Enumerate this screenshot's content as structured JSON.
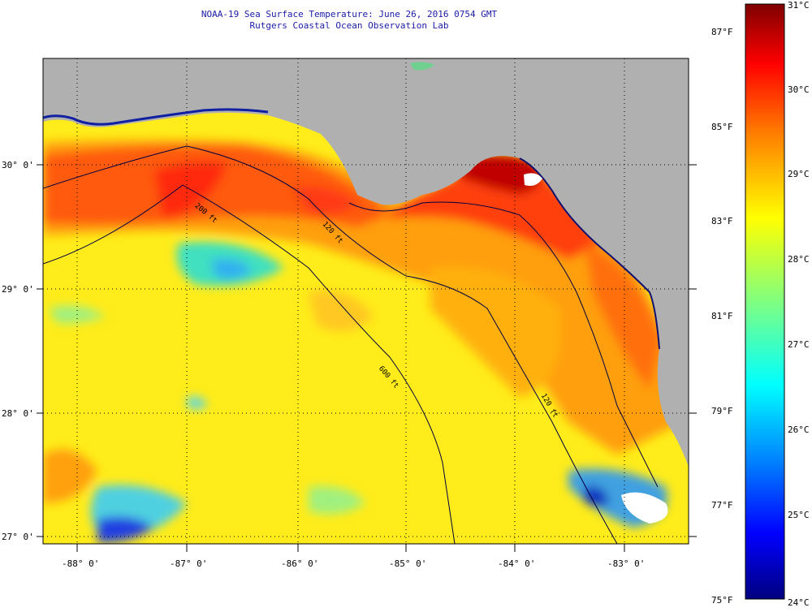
{
  "title": {
    "line1": "NOAA-19 Sea Surface Temperature:  June 26, 2016 0754 GMT",
    "line2": "Rutgers Coastal Ocean Observation Lab"
  },
  "map": {
    "lat_labels": [
      "30° 0'",
      "29° 0'",
      "28° 0'",
      "27° 0'"
    ],
    "lon_labels": [
      "-88° 0'",
      "-87° 0'",
      "-86° 0'",
      "-85° 0'",
      "-84° 0'",
      "-83° 0'"
    ],
    "isobath_labels": [
      "200 ft",
      "120 ft",
      "600 ft",
      "120 ft"
    ],
    "lon_range": [
      -88.3,
      -82.6
    ],
    "lat_range": [
      26.9,
      30.85
    ],
    "land_color": "#b0b0b0",
    "grid": "dotted"
  },
  "colorbar": {
    "celsius_labels": [
      "31°C",
      "30°C",
      "29°C",
      "28°C",
      "27°C",
      "26°C",
      "25°C",
      "24°C"
    ],
    "fahrenheit_labels": [
      "87°F",
      "85°F",
      "83°F",
      "81°F",
      "79°F",
      "77°F",
      "75°F"
    ],
    "range_c": [
      24,
      31
    ],
    "colormap": [
      "#00007f",
      "#0000ff",
      "#0080ff",
      "#00ffff",
      "#80ff80",
      "#ffff00",
      "#ff8000",
      "#ff0000",
      "#7f0000"
    ]
  }
}
